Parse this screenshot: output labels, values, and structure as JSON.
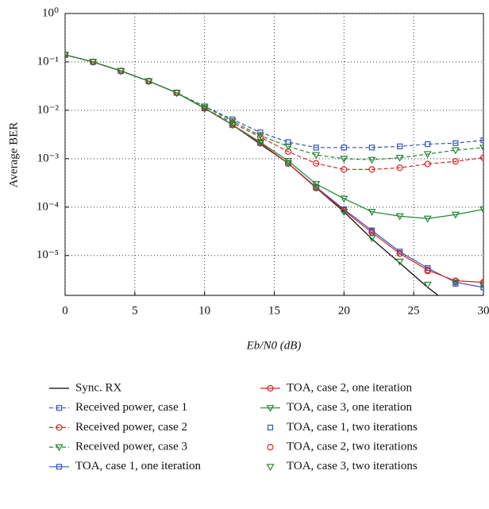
{
  "chart_data": {
    "type": "line",
    "x_label": "Eb/N0 (dB)",
    "y_label": "Average BER",
    "log_y": true,
    "grid": true,
    "x": [
      0,
      2,
      4,
      6,
      8,
      10,
      12,
      14,
      16,
      18,
      20,
      22,
      24,
      26,
      28,
      30
    ],
    "xlim": [
      0,
      30
    ],
    "xticks": [
      0,
      5,
      10,
      15,
      20,
      25,
      30
    ],
    "ylim": [
      1.5e-06,
      1
    ],
    "yticks": [
      {
        "value": 1,
        "label": "10⁰"
      },
      {
        "value": 0.1,
        "label": "10⁻¹"
      },
      {
        "value": 0.01,
        "label": "10⁻²"
      },
      {
        "value": 0.001,
        "label": "10⁻³"
      },
      {
        "value": 0.0001,
        "label": "10⁻⁴"
      },
      {
        "value": 1e-05,
        "label": "10⁻⁵"
      }
    ],
    "series": [
      {
        "name": "Sync. RX",
        "color": "#000000",
        "line": "solid",
        "marker": null,
        "values": [
          0.14,
          0.1,
          0.065,
          0.04,
          0.023,
          0.011,
          0.005,
          0.002,
          0.0008,
          0.00025,
          8e-05,
          2.2e-05,
          7e-06,
          2.2e-06,
          8e-07,
          null
        ]
      },
      {
        "name": "Received power, case 1",
        "color": "#3355bb",
        "line": "dashed",
        "marker": "square",
        "values": [
          0.14,
          0.1,
          0.065,
          0.04,
          0.023,
          0.012,
          0.0065,
          0.0035,
          0.0022,
          0.0017,
          0.0017,
          0.0017,
          0.0018,
          0.002,
          0.0021,
          0.0024
        ]
      },
      {
        "name": "Received power, case 2",
        "color": "#dd2222",
        "line": "dashed",
        "marker": "circle",
        "values": [
          0.14,
          0.1,
          0.065,
          0.04,
          0.023,
          0.011,
          0.0055,
          0.0028,
          0.0014,
          0.0008,
          0.0006,
          0.0006,
          0.00065,
          0.00078,
          0.00088,
          0.00105
        ]
      },
      {
        "name": "Received power, case 3",
        "color": "#228833",
        "line": "dashed",
        "marker": "triangle",
        "values": [
          0.14,
          0.1,
          0.065,
          0.04,
          0.023,
          0.012,
          0.006,
          0.003,
          0.0018,
          0.0012,
          0.001,
          0.00095,
          0.00105,
          0.00125,
          0.0015,
          0.0017
        ]
      },
      {
        "name": "TOA, case 1, one iteration",
        "color": "#3355bb",
        "line": "solid",
        "marker": "square",
        "values": [
          0.14,
          0.1,
          0.065,
          0.04,
          0.023,
          0.011,
          0.005,
          0.0021,
          0.0008,
          0.00026,
          9e-05,
          3.3e-05,
          1.2e-05,
          5.5e-06,
          2.8e-06,
          2.2e-06
        ]
      },
      {
        "name": "TOA, case 2, one iteration",
        "color": "#dd2222",
        "line": "solid",
        "marker": "circle",
        "values": [
          0.14,
          0.1,
          0.065,
          0.04,
          0.023,
          0.011,
          0.005,
          0.0021,
          0.0008,
          0.00025,
          8.5e-05,
          3e-05,
          1.1e-05,
          5e-06,
          3e-06,
          2.8e-06
        ]
      },
      {
        "name": "TOA, case 3, one iteration",
        "color": "#228833",
        "line": "solid",
        "marker": "triangle",
        "values": [
          0.14,
          0.1,
          0.065,
          0.04,
          0.023,
          0.011,
          0.005,
          0.0022,
          0.0009,
          0.0003,
          0.00015,
          8e-05,
          6.5e-05,
          5.8e-05,
          7e-05,
          9e-05
        ]
      },
      {
        "name": "TOA, case 1, two iterations",
        "color": "#3355bb",
        "line": "none",
        "marker": "square",
        "values": [
          0.14,
          0.1,
          0.065,
          0.04,
          0.023,
          0.011,
          0.005,
          0.0021,
          0.0008,
          0.00025,
          9e-05,
          3.2e-05,
          1.2e-05,
          5.5e-06,
          2.6e-06,
          2.2e-06
        ]
      },
      {
        "name": "TOA, case 2, two iterations",
        "color": "#dd2222",
        "line": "none",
        "marker": "circle",
        "values": [
          0.14,
          0.1,
          0.065,
          0.04,
          0.023,
          0.011,
          0.005,
          0.0021,
          0.0008,
          0.00025,
          8.5e-05,
          3e-05,
          1.1e-05,
          4.8e-06,
          3e-06,
          2.7e-06
        ]
      },
      {
        "name": "TOA, case 3, two iterations",
        "color": "#228833",
        "line": "none",
        "marker": "triangle",
        "values": [
          0.14,
          0.1,
          0.065,
          0.04,
          0.023,
          0.011,
          0.005,
          0.0021,
          0.0008,
          0.00025,
          8e-05,
          2.3e-05,
          7.5e-06,
          2.5e-06,
          2.8e-06,
          2.4e-06
        ]
      }
    ]
  }
}
